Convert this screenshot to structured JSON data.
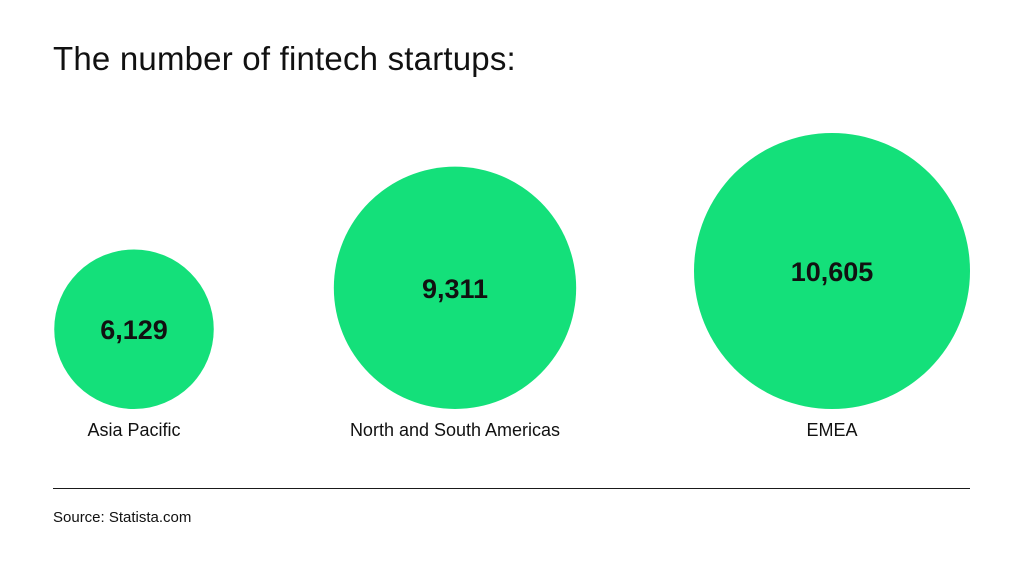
{
  "title": "The number of fintech startups:",
  "source": "Source: Statista.com",
  "colors": {
    "bubble": "#14e07a",
    "text": "#111111"
  },
  "chart_data": {
    "type": "bubble",
    "title": "The number of fintech startups:",
    "categories": [
      "Asia Pacific",
      "North and South Americas",
      "EMEA"
    ],
    "values": [
      6129,
      9311,
      10605
    ],
    "value_labels": [
      "6,129",
      "9,311",
      "10,605"
    ],
    "legend": "none",
    "grid": false
  }
}
